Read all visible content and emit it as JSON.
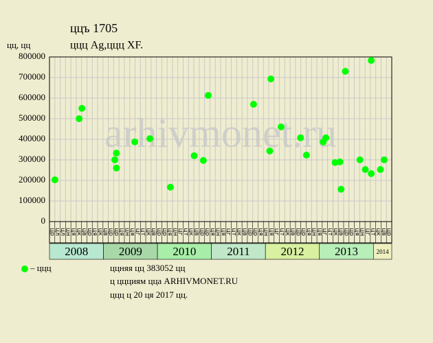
{
  "chart_data": {
    "type": "scatter",
    "title": "ццъ 1705",
    "subtitle": "ццц Ag,ццц XF.",
    "y_label": "цц, цц",
    "watermark": "arhivmonet.ru",
    "legend_label": "– ццц",
    "notes": [
      "ццняя цц 383052 цц",
      "ц ццциям цца ARHIVMONET.RU",
      "ццц ц 20 ця 2017 цц."
    ],
    "color": "#00ff00",
    "grid": true,
    "xlim": [
      2008,
      2014.34
    ],
    "ylim": [
      0,
      800000
    ],
    "yticks": [
      0,
      100000,
      200000,
      300000,
      400000,
      500000,
      600000,
      700000,
      800000
    ],
    "xticks": [
      {
        "value": 2008,
        "label": "2008"
      },
      {
        "value": 2009,
        "label": "2009"
      },
      {
        "value": 2010,
        "label": "2010"
      },
      {
        "value": 2011,
        "label": "2011"
      },
      {
        "value": 2012,
        "label": "2012"
      },
      {
        "value": 2013,
        "label": "2013"
      },
      {
        "value": 2014,
        "label": "2014"
      }
    ],
    "band_colors": [
      "#b8e8d0",
      "#a8d8a8",
      "#a8eea8",
      "#c0e8c8",
      "#d8f0a0",
      "#b8eeb8",
      "#eef0c0"
    ],
    "month_labels": [
      "цр",
      "цл",
      "цл",
      "цн",
      "ця",
      "цк",
      "цв",
      "цр",
      "ця",
      "цк",
      "цв",
      "цр",
      "цр",
      "ця",
      "цн",
      "ця",
      "цг",
      "цт",
      "цк",
      "цв",
      "цр",
      "цр",
      "ця",
      "цн",
      "цг",
      "цт",
      "цк",
      "цв",
      "цр",
      "цр",
      "ця",
      "цн",
      "ця",
      "цг",
      "цт",
      "цк",
      "цв",
      "цр",
      "цр",
      "ця",
      "цн",
      "ця",
      "цг",
      "цт",
      "цк",
      "цв",
      "цр",
      "цр",
      "ця",
      "цн",
      "ця",
      "цг",
      "цт",
      "цк",
      "цв",
      "цр",
      "цр",
      "ця",
      "цн",
      "цг",
      "цт",
      "цк",
      "цв",
      "цр"
    ],
    "x": [
      2008.1,
      2008.55,
      2008.6,
      2009.21,
      2009.24,
      2009.24,
      2009.58,
      2009.86,
      2010.24,
      2010.68,
      2010.85,
      2010.94,
      2011.78,
      2012.08,
      2012.1,
      2012.29,
      2012.65,
      2012.76,
      2013.07,
      2013.12,
      2013.29,
      2013.38,
      2013.4,
      2013.48,
      2013.75,
      2013.85,
      2013.96,
      2013.96,
      2014.13,
      2014.2
    ],
    "values": [
      203000,
      500000,
      550000,
      300000,
      333000,
      260000,
      387000,
      403000,
      167000,
      320000,
      297000,
      613000,
      570000,
      343000,
      693000,
      460000,
      407000,
      323000,
      387000,
      407000,
      287000,
      290000,
      157000,
      730000,
      300000,
      253000,
      783000,
      233000,
      253000,
      300000
    ]
  }
}
